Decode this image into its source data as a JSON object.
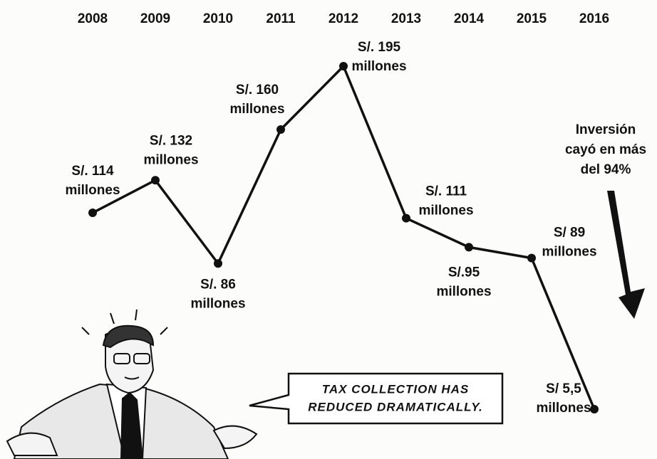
{
  "chart_data": {
    "type": "line",
    "categories": [
      "2008",
      "2009",
      "2010",
      "2011",
      "2012",
      "2013",
      "2014",
      "2015",
      "2016"
    ],
    "values": [
      114,
      132,
      86,
      160,
      195,
      111,
      95,
      89,
      5.5
    ],
    "value_labels": [
      [
        "S/. 114",
        "millones"
      ],
      [
        "S/. 132",
        "millones"
      ],
      [
        "S/. 86",
        "millones"
      ],
      [
        "S/. 160",
        "millones"
      ],
      [
        "S/. 195",
        "millones"
      ],
      [
        "S/. 111",
        "millones"
      ],
      [
        "S/.95",
        "millones"
      ],
      [
        "S/ 89",
        "millones"
      ],
      [
        "S/ 5,5",
        "millones"
      ]
    ],
    "color": "#111111",
    "annotation": [
      "Inversión",
      "cayó en más",
      "del 94%"
    ],
    "speech": [
      "TAX COLLECTION HAS",
      "REDUCED DRAMATICALLY."
    ]
  }
}
